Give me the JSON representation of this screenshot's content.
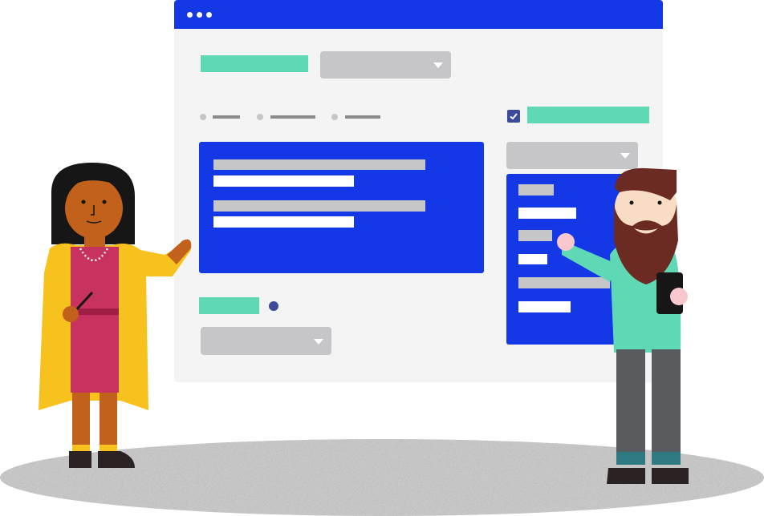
{
  "colors": {
    "brand_blue": "#1438e6",
    "teal": "#5fd8b5",
    "panel_bg": "#f4f4f4",
    "placeholder_gray": "#c6c6c8",
    "tab_line": "#8a8a8a",
    "checkbox": "#3b4a9a",
    "ground": "#bdbdbd"
  },
  "window": {
    "titlebar_icons": [
      "window-dot-icon",
      "window-dot-icon",
      "window-dot-icon"
    ],
    "dropdown_icon": "chevron-down-icon",
    "checkbox_checked": true
  },
  "illustration": {
    "characters": [
      "woman-with-pointer",
      "bearded-man-with-phone"
    ]
  }
}
